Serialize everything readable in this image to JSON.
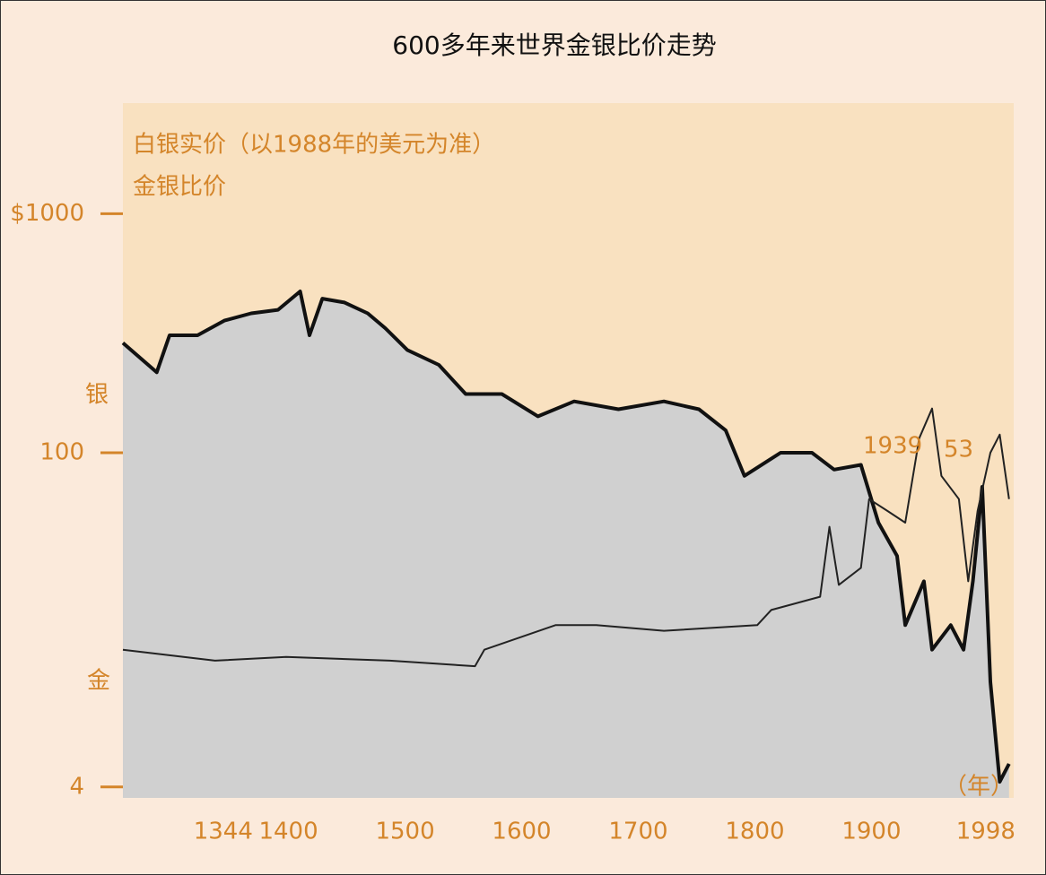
{
  "chart_data": {
    "type": "line",
    "title": "600多年来世界金银比价走势",
    "annotations": [
      "银",
      "金",
      "1939",
      "53",
      "（年）"
    ],
    "log_scale": true,
    "xlim": [
      1258,
      2022
    ],
    "xticks": [
      1344,
      1400,
      1500,
      1600,
      1700,
      1800,
      1900,
      1998
    ],
    "ylim": [
      3.6,
      2900
    ],
    "yticks": [
      {
        "value": 1000,
        "label": "$1000"
      },
      100,
      4
    ],
    "series": [
      {
        "name": "白银实价（以1988年的美元为准）",
        "color": "#111111",
        "fill": "#d0d0d0",
        "x": [
          1258,
          1287,
          1298,
          1322,
          1345,
          1368,
          1391,
          1410,
          1418,
          1429,
          1448,
          1468,
          1483,
          1502,
          1529,
          1552,
          1583,
          1614,
          1645,
          1683,
          1722,
          1752,
          1775,
          1791,
          1822,
          1849,
          1868,
          1891,
          1906,
          1922,
          1929,
          1945,
          1952,
          1968,
          1979,
          1987,
          1995,
          2002,
          2010,
          2018
        ],
        "values": [
          288,
          217,
          310,
          310,
          357,
          383,
          396,
          473,
          310,
          441,
          425,
          383,
          332,
          269,
          233,
          176,
          176,
          142,
          164,
          152,
          164,
          152,
          124,
          80,
          100,
          100,
          85,
          89,
          51,
          37,
          19,
          29,
          15,
          19,
          15,
          29,
          72,
          11,
          4.2,
          5
        ]
      },
      {
        "name": "金银比价",
        "color": "#222222",
        "x": [
          1258,
          1337,
          1398,
          1487,
          1560,
          1568,
          1629,
          1664,
          1722,
          1802,
          1814,
          1856,
          1864,
          1872,
          1891,
          1898,
          1914,
          1929,
          1941,
          1952,
          1960,
          1975,
          1983,
          1991,
          2002,
          2010,
          2018
        ],
        "values": [
          15,
          13.5,
          14,
          13.5,
          12.8,
          15,
          19,
          19,
          18,
          19,
          22,
          25,
          49,
          28,
          33,
          64,
          57,
          51,
          115,
          153,
          80,
          64,
          29,
          57,
          100,
          119,
          64
        ]
      }
    ]
  }
}
